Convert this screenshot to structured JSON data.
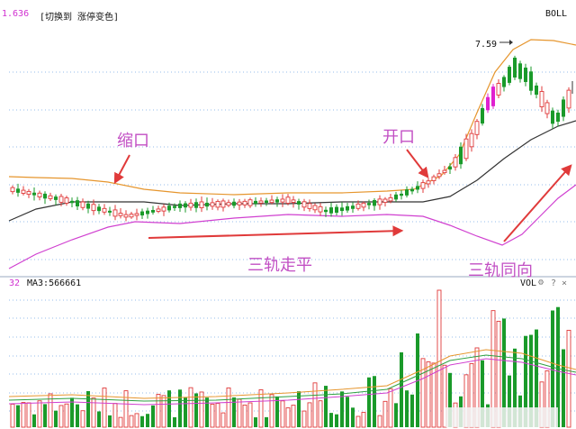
{
  "header": {
    "price_prefix": "1.636",
    "switch_label": "[切换到 涨停变色]",
    "indicator_label": "BOLL"
  },
  "volume_header": {
    "left_label": "32",
    "ma3_label": "MA3:566661",
    "vol_label": "VOL",
    "icons": [
      "gear-icon",
      "question-icon",
      "close-icon"
    ]
  },
  "chart_data": {
    "type": "candlestick",
    "title": "",
    "indicator": "BOLL",
    "price_marker": "7.59",
    "annotations": [
      {
        "id": "squeeze",
        "text": "缩口"
      },
      {
        "id": "open",
        "text": "开口"
      },
      {
        "id": "flat",
        "text": "三轨走平"
      },
      {
        "id": "same-direction",
        "text": "三轨同向"
      }
    ],
    "colors": {
      "up": "#e03a3a",
      "down": "#1a9a2a",
      "limit_up": "#e020d0",
      "upper_band": "#e6962e",
      "mid_band": "#333333",
      "lower_band": "#d040d0",
      "arrow": "#e03a3a",
      "volume_ma_orange": "#e6962e",
      "volume_ma_pink": "#d040d0",
      "volume_ma_green": "#2ea040",
      "grid": "#2a7ad8"
    },
    "grid": true,
    "candle_pattern": "flat-range-then-breakout",
    "volume_pattern": "low-then-expanding"
  }
}
